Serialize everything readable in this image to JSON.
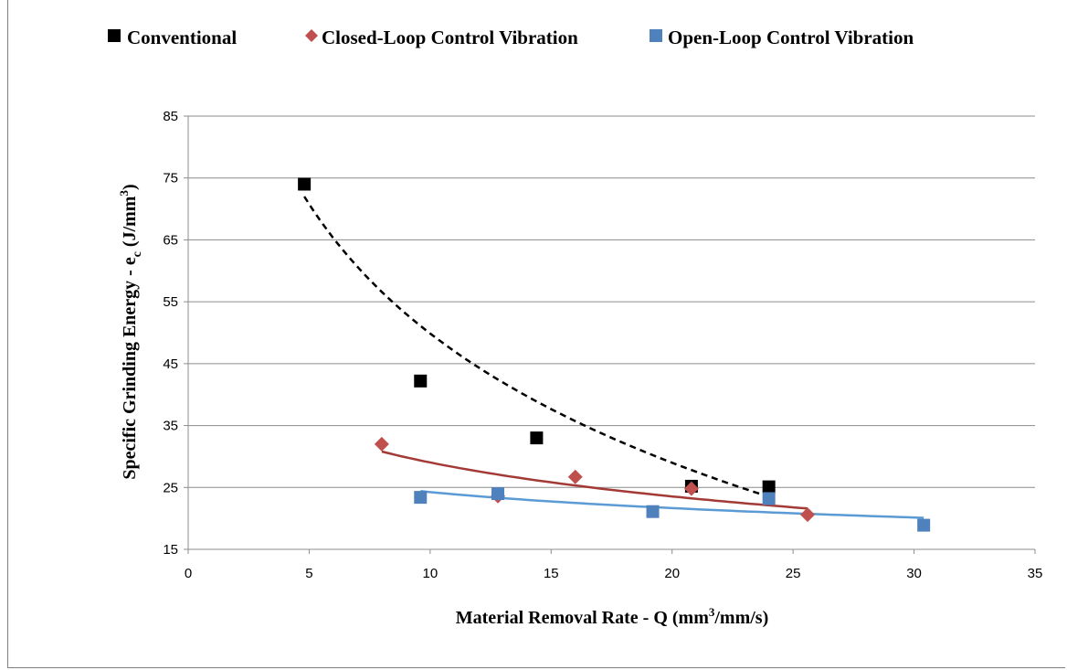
{
  "chart_data": {
    "type": "scatter",
    "xlabel": "Material Removal Rate - Q (mm³/mm/s)",
    "ylabel": "Specific Grinding Energy - e c (J/mm³)",
    "xlim": [
      0,
      35
    ],
    "ylim": [
      15,
      85
    ],
    "x_ticks": [
      0,
      5,
      10,
      15,
      20,
      25,
      30,
      35
    ],
    "y_ticks": [
      15,
      25,
      35,
      45,
      55,
      65,
      75,
      85
    ],
    "grid": "horizontal",
    "legend_position": "top",
    "series": [
      {
        "name": "Conventional",
        "marker": "square",
        "color": "#000000",
        "points": [
          [
            4.8,
            74
          ],
          [
            9.6,
            42.2
          ],
          [
            14.4,
            33
          ],
          [
            20.8,
            25.2
          ],
          [
            24,
            25.1
          ]
        ],
        "trendline": {
          "style": "dashed",
          "color": "#000000",
          "x_range": [
            4.8,
            24
          ],
          "y_start": 72,
          "y_end": 23.5
        }
      },
      {
        "name": "Closed-Loop Control Vibration",
        "marker": "diamond",
        "color": "#c0504d",
        "points": [
          [
            8,
            32
          ],
          [
            12.8,
            23.6
          ],
          [
            16,
            26.7
          ],
          [
            20.8,
            24.8
          ],
          [
            25.6,
            20.6
          ]
        ],
        "trendline": {
          "style": "solid",
          "color": "#a33a36",
          "x_range": [
            8,
            25.6
          ],
          "y_start": 30.8,
          "y_end": 21.6
        }
      },
      {
        "name": "Open-Loop Control Vibration",
        "marker": "square",
        "color": "#4f81bd",
        "points": [
          [
            9.6,
            23.4
          ],
          [
            12.8,
            24
          ],
          [
            19.2,
            21.1
          ],
          [
            24,
            23.2
          ],
          [
            30.4,
            18.9
          ]
        ],
        "trendline": {
          "style": "solid",
          "color": "#5b9bd5",
          "x_range": [
            9.6,
            30.4
          ],
          "y_start": 24.4,
          "y_end": 20.1
        }
      }
    ]
  },
  "legend": {
    "item1": "Conventional",
    "item2": "Closed-Loop Control Vibration",
    "item3": "Open-Loop Control Vibration"
  },
  "axis": {
    "x_title_main": "Material Removal Rate - Q (mm",
    "x_title_sup": "3",
    "x_title_end": "/mm/s)",
    "y_title_main": "Specific Grinding Energy - e",
    "y_title_sub": "c",
    "y_title_mid": " (J/mm",
    "y_title_sup": "3",
    "y_title_end": ")"
  }
}
